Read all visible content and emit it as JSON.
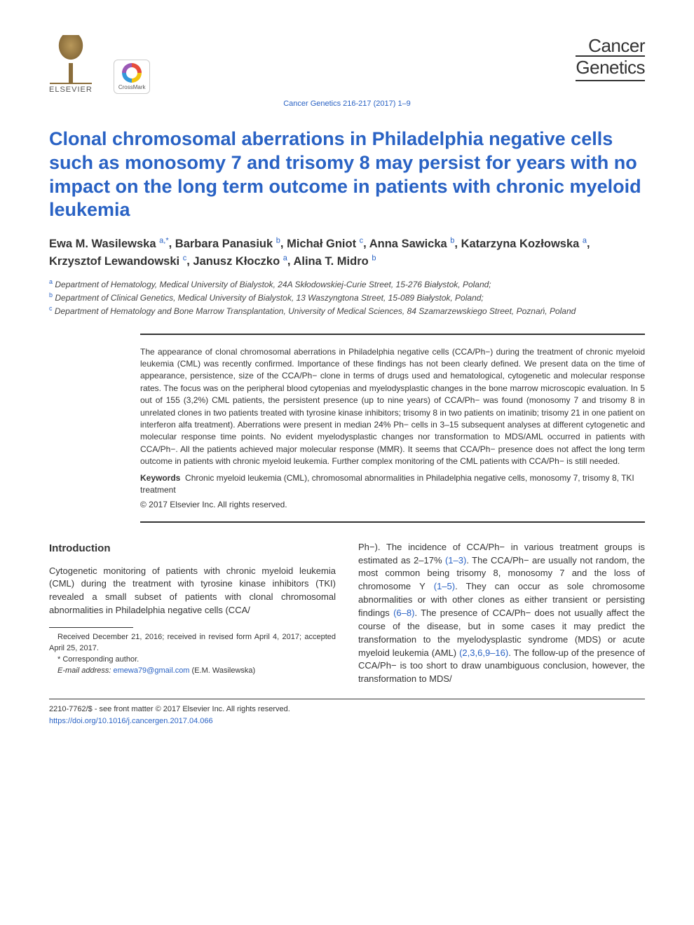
{
  "header": {
    "publisher": "ELSEVIER",
    "crossmark": "CrossMark",
    "journal_brand_1": "Cancer",
    "journal_brand_2": "Genetics",
    "citation": "Cancer Genetics 216-217 (2017) 1–9"
  },
  "title": "Clonal chromosomal aberrations in Philadelphia negative cells such as monosomy 7 and trisomy 8 may persist for years with no impact on the long term outcome in patients with chronic myeloid leukemia",
  "authors": [
    {
      "name": "Ewa M. Wasilewska",
      "marks": "a,*"
    },
    {
      "name": "Barbara Panasiuk",
      "marks": "b"
    },
    {
      "name": "Michał Gniot",
      "marks": "c"
    },
    {
      "name": "Anna Sawicka",
      "marks": "b"
    },
    {
      "name": "Katarzyna Kozłowska",
      "marks": "a"
    },
    {
      "name": "Krzysztof Lewandowski",
      "marks": "c"
    },
    {
      "name": "Janusz Kłoczko",
      "marks": "a"
    },
    {
      "name": "Alina T. Midro",
      "marks": "b"
    }
  ],
  "affiliations": {
    "a": "Department of Hematology, Medical University of Bialystok, 24A Skłodowskiej-Curie Street, 15-276 Białystok, Poland;",
    "b": "Department of Clinical Genetics, Medical University of Bialystok, 13 Waszyngtona Street, 15-089 Białystok, Poland;",
    "c": "Department of Hematology and Bone Marrow Transplantation, University of Medical Sciences, 84 Szamarzewskiego Street, Poznań, Poland"
  },
  "abstract": "The appearance of clonal chromosomal aberrations in Philadelphia negative cells (CCA/Ph−) during the treatment of chronic myeloid leukemia (CML) was recently confirmed. Importance of these findings has not been clearly defined. We present data on the time of appearance, persistence, size of the CCA/Ph− clone in terms of drugs used and hematological, cytogenetic and molecular response rates. The focus was on the peripheral blood cytopenias and myelodysplastic changes in the bone marrow microscopic evaluation. In 5 out of 155 (3,2%) CML patients, the persistent presence (up to nine years) of CCA/Ph− was found (monosomy 7 and trisomy 8 in unrelated clones in two patients treated with tyrosine kinase inhibitors; trisomy 8 in two patients on imatinib; trisomy 21 in one patient on interferon alfa treatment). Aberrations were present in median 24% Ph− cells in 3–15 subsequent analyses at different cytogenetic and molecular response time points. No evident myelodysplastic changes nor transformation to MDS/AML occurred in patients with CCA/Ph−. All the patients achieved major molecular response (MMR). It seems that CCA/Ph− presence does not affect the long term outcome in patients with chronic myeloid leukemia. Further complex monitoring of the CML patients with CCA/Ph− is still needed.",
  "keywords_label": "Keywords",
  "keywords": "Chronic myeloid leukemia (CML), chromosomal abnormalities in Philadelphia negative cells, monosomy 7, trisomy 8, TKI treatment",
  "abstract_copyright": "© 2017 Elsevier Inc. All rights reserved.",
  "intro_heading": "Introduction",
  "intro_col1": "Cytogenetic monitoring of patients with chronic myeloid leukemia (CML) during the treatment with tyrosine kinase inhibitors (TKI) revealed a small subset of patients with clonal chromosomal abnormalities in Philadelphia negative cells (CCA/",
  "intro_col2_a": "Ph−). The incidence of CCA/Ph− in various treatment groups is estimated as 2–17% ",
  "intro_col2_ref1": "(1–3)",
  "intro_col2_b": ". The CCA/Ph− are usually not random, the most common being trisomy 8, monosomy 7 and the loss of chromosome Y ",
  "intro_col2_ref2": "(1–5)",
  "intro_col2_c": ". They can occur as sole chromosome abnormalities or with other clones as either transient or persisting findings ",
  "intro_col2_ref3": "(6–8)",
  "intro_col2_d": ". The presence of CCA/Ph− does not usually affect the course of the disease, but in some cases it may predict the transformation to the myelodysplastic syndrome (MDS) or acute myeloid leukemia (AML) ",
  "intro_col2_ref4": "(2,3,6,9–16)",
  "intro_col2_e": ". The follow-up of the presence of CCA/Ph− is too short to draw unambiguous conclusion, however, the transformation to MDS/",
  "footnotes": {
    "received": "Received December 21, 2016; received in revised form April 4, 2017; accepted April 25, 2017.",
    "corresponding": "* Corresponding author.",
    "email_label": "E-mail address:",
    "email": "emewa79@gmail.com",
    "email_name": " (E.M. Wasilewska)"
  },
  "footer": {
    "issn": "2210-7762/$ - see front matter © 2017 Elsevier Inc. All rights reserved.",
    "doi": "https://doi.org/10.1016/j.cancergen.2017.04.066"
  }
}
